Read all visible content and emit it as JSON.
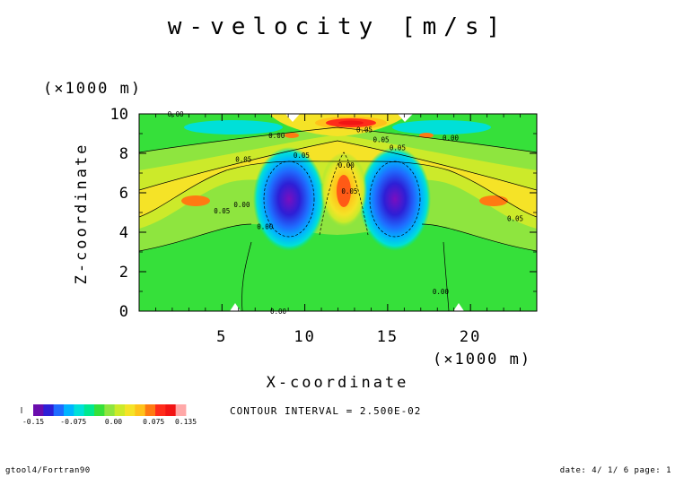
{
  "chart_data": {
    "type": "heatmap",
    "title": "w-velocity [m/s]",
    "xlabel": "X-coordinate",
    "ylabel": "Z-coordinate",
    "x_unit": "(×1000 m)",
    "y_unit": "(×1000 m)",
    "xlim": [
      0,
      24
    ],
    "ylim": [
      0,
      10
    ],
    "x_ticks": [
      5,
      10,
      15,
      20
    ],
    "x_tick_labels": [
      "5",
      "10",
      "15",
      "20"
    ],
    "y_ticks": [
      0,
      2,
      4,
      6,
      8,
      10
    ],
    "y_tick_labels": [
      "0",
      "2",
      "4",
      "6",
      "8",
      "10"
    ],
    "contour_interval_text": "CONTOUR INTERVAL = 2.500E-02",
    "contour_labels": [
      {
        "text": "0.00",
        "x": 2.2,
        "z": 10.0
      },
      {
        "text": "0.00",
        "x": 8.3,
        "z": 8.9
      },
      {
        "text": "0.05",
        "x": 6.3,
        "z": 7.7
      },
      {
        "text": "0.05",
        "x": 9.8,
        "z": 7.9
      },
      {
        "text": "0.00",
        "x": 12.5,
        "z": 7.4
      },
      {
        "text": "0.05",
        "x": 13.6,
        "z": 9.2
      },
      {
        "text": "0.05",
        "x": 14.6,
        "z": 8.7
      },
      {
        "text": "0.05",
        "x": 15.6,
        "z": 8.3
      },
      {
        "text": "0.00",
        "x": 18.8,
        "z": 8.8
      },
      {
        "text": "0.05",
        "x": 5.0,
        "z": 5.1
      },
      {
        "text": "0.00",
        "x": 6.2,
        "z": 5.4
      },
      {
        "text": "0.05",
        "x": 12.7,
        "z": 6.1
      },
      {
        "text": "0.00",
        "x": 7.6,
        "z": 4.3
      },
      {
        "text": "0.05",
        "x": 22.7,
        "z": 4.7
      },
      {
        "text": "0.00",
        "x": 18.2,
        "z": 1.0
      },
      {
        "text": "0.00",
        "x": 8.4,
        "z": 0.0
      }
    ],
    "colorbar": {
      "levels": [
        -0.15,
        -0.125,
        -0.1,
        -0.075,
        -0.05,
        -0.025,
        0.0,
        0.025,
        0.05,
        0.075,
        0.1,
        0.125,
        0.135
      ],
      "colors": [
        "#6a0dad",
        "#2d1fd6",
        "#1f6cff",
        "#00b4ff",
        "#00e0d8",
        "#00e890",
        "#36e03a",
        "#8ee53f",
        "#ccea2a",
        "#f5e327",
        "#ffc21a",
        "#ff7a12",
        "#ff2c1a",
        "#f21414",
        "#ffa8a8"
      ],
      "tick_labels": [
        "-0.15",
        "-0.075",
        "0.00",
        "0.075",
        "0.135"
      ],
      "tick_values": [
        -0.15,
        -0.075,
        0.0,
        0.075,
        0.135
      ]
    }
  },
  "footer": {
    "left": "gtool4/Fortran90",
    "right": "date: 4/ 1/ 6 page: 1"
  }
}
